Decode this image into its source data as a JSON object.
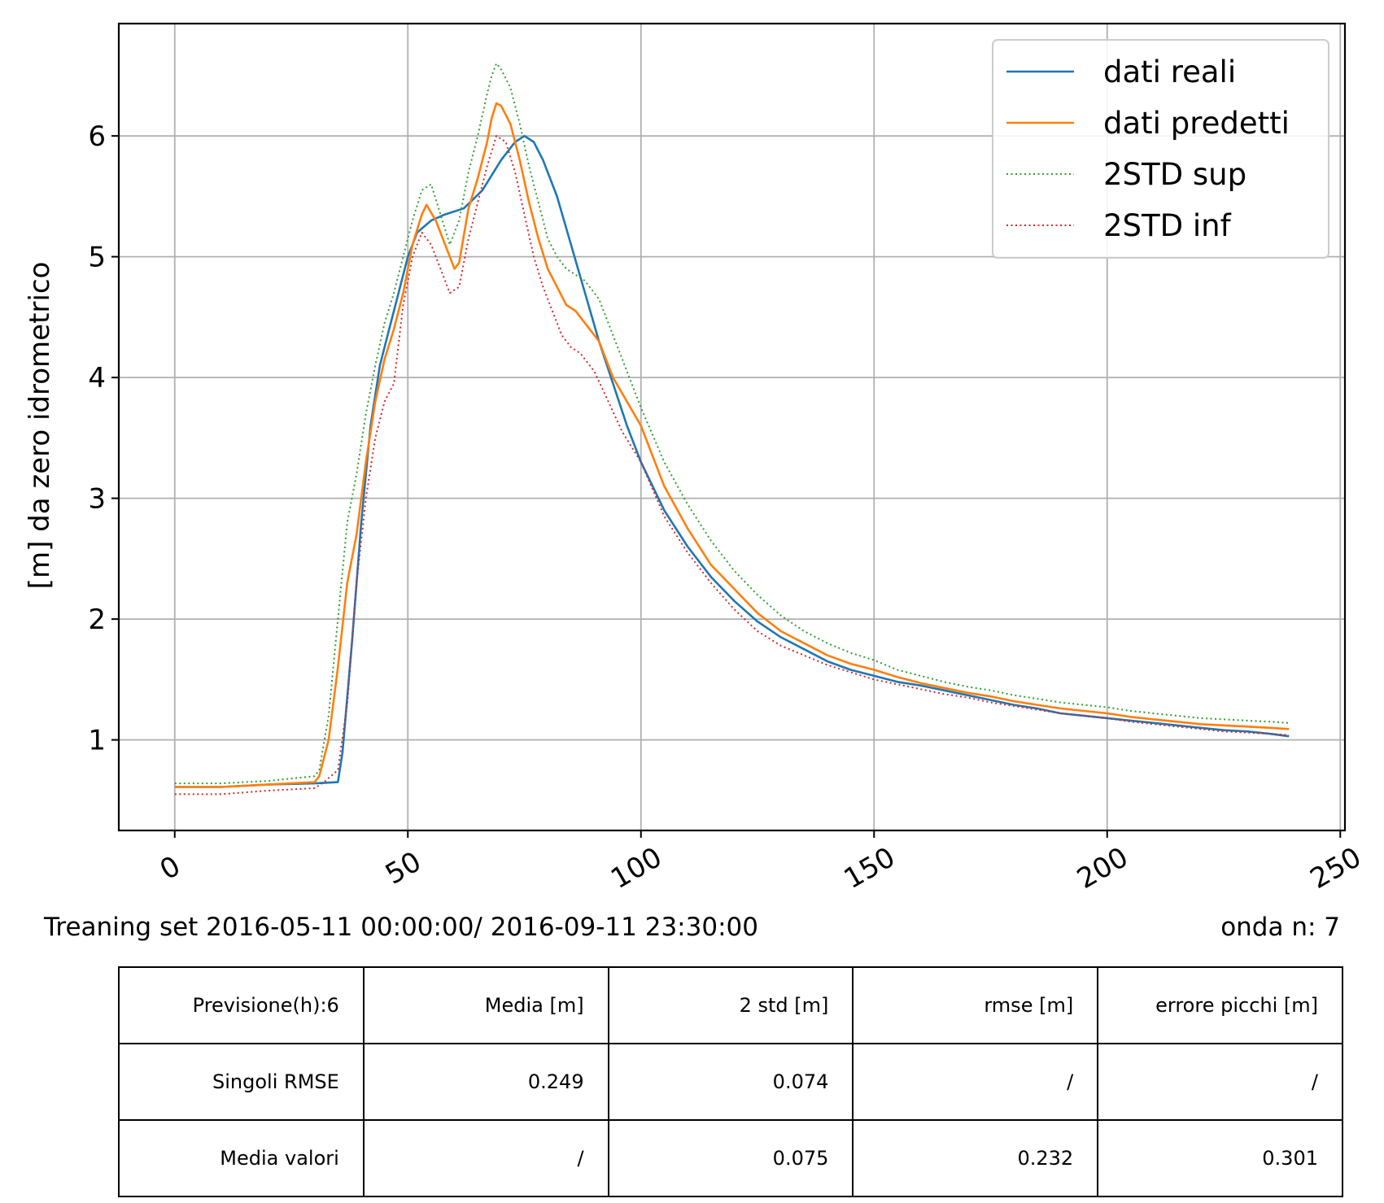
{
  "chart_data": {
    "type": "line",
    "title": "",
    "xlabel": "",
    "ylabel": "[m] da zero idrometrico",
    "xlim": [
      -12,
      251
    ],
    "ylim": [
      0.25,
      6.93
    ],
    "xticks": [
      0,
      50,
      100,
      150,
      200,
      250
    ],
    "yticks": [
      1,
      2,
      3,
      4,
      5,
      6
    ],
    "grid": true,
    "legend_position": "top-right",
    "x_range": [
      0,
      239
    ],
    "series": [
      {
        "name": "dati reali",
        "color": "#1f77b4",
        "style": "solid",
        "points": [
          [
            0,
            0.61
          ],
          [
            10,
            0.61
          ],
          [
            20,
            0.63
          ],
          [
            30,
            0.64
          ],
          [
            35,
            0.65
          ],
          [
            36,
            0.9
          ],
          [
            38,
            1.8
          ],
          [
            40,
            2.8
          ],
          [
            42,
            3.6
          ],
          [
            44,
            4.1
          ],
          [
            46,
            4.4
          ],
          [
            48,
            4.7
          ],
          [
            50,
            5.0
          ],
          [
            52,
            5.2
          ],
          [
            55,
            5.3
          ],
          [
            58,
            5.35
          ],
          [
            62,
            5.4
          ],
          [
            66,
            5.55
          ],
          [
            70,
            5.8
          ],
          [
            73,
            5.95
          ],
          [
            75,
            6.0
          ],
          [
            77,
            5.95
          ],
          [
            79,
            5.8
          ],
          [
            82,
            5.5
          ],
          [
            85,
            5.1
          ],
          [
            88,
            4.7
          ],
          [
            91,
            4.3
          ],
          [
            94,
            3.95
          ],
          [
            97,
            3.6
          ],
          [
            100,
            3.3
          ],
          [
            105,
            2.9
          ],
          [
            110,
            2.6
          ],
          [
            115,
            2.35
          ],
          [
            120,
            2.15
          ],
          [
            125,
            1.98
          ],
          [
            130,
            1.85
          ],
          [
            135,
            1.75
          ],
          [
            140,
            1.65
          ],
          [
            145,
            1.58
          ],
          [
            150,
            1.53
          ],
          [
            155,
            1.48
          ],
          [
            160,
            1.45
          ],
          [
            165,
            1.41
          ],
          [
            170,
            1.37
          ],
          [
            175,
            1.33
          ],
          [
            180,
            1.29
          ],
          [
            185,
            1.26
          ],
          [
            190,
            1.22
          ],
          [
            195,
            1.2
          ],
          [
            200,
            1.18
          ],
          [
            205,
            1.16
          ],
          [
            210,
            1.14
          ],
          [
            215,
            1.12
          ],
          [
            220,
            1.1
          ],
          [
            225,
            1.08
          ],
          [
            230,
            1.07
          ],
          [
            235,
            1.05
          ],
          [
            239,
            1.03
          ]
        ]
      },
      {
        "name": "dati predetti",
        "color": "#ff7f0e",
        "style": "solid",
        "points": [
          [
            0,
            0.61
          ],
          [
            10,
            0.61
          ],
          [
            20,
            0.63
          ],
          [
            30,
            0.65
          ],
          [
            31,
            0.7
          ],
          [
            33,
            1.0
          ],
          [
            35,
            1.6
          ],
          [
            37,
            2.3
          ],
          [
            39,
            2.7
          ],
          [
            41,
            3.3
          ],
          [
            43,
            3.8
          ],
          [
            45,
            4.15
          ],
          [
            47,
            4.4
          ],
          [
            49,
            4.7
          ],
          [
            51,
            5.1
          ],
          [
            53,
            5.35
          ],
          [
            54,
            5.43
          ],
          [
            56,
            5.3
          ],
          [
            58,
            5.1
          ],
          [
            60,
            4.9
          ],
          [
            61,
            4.95
          ],
          [
            63,
            5.4
          ],
          [
            65,
            5.65
          ],
          [
            67,
            5.95
          ],
          [
            68,
            6.15
          ],
          [
            69,
            6.27
          ],
          [
            70,
            6.25
          ],
          [
            72,
            6.1
          ],
          [
            74,
            5.8
          ],
          [
            76,
            5.45
          ],
          [
            78,
            5.15
          ],
          [
            80,
            4.9
          ],
          [
            82,
            4.75
          ],
          [
            84,
            4.6
          ],
          [
            86,
            4.55
          ],
          [
            88,
            4.45
          ],
          [
            91,
            4.3
          ],
          [
            94,
            4.0
          ],
          [
            97,
            3.8
          ],
          [
            100,
            3.6
          ],
          [
            105,
            3.1
          ],
          [
            110,
            2.75
          ],
          [
            115,
            2.45
          ],
          [
            120,
            2.25
          ],
          [
            125,
            2.05
          ],
          [
            130,
            1.9
          ],
          [
            135,
            1.8
          ],
          [
            140,
            1.7
          ],
          [
            145,
            1.63
          ],
          [
            150,
            1.58
          ],
          [
            155,
            1.52
          ],
          [
            160,
            1.47
          ],
          [
            165,
            1.43
          ],
          [
            170,
            1.39
          ],
          [
            175,
            1.36
          ],
          [
            180,
            1.32
          ],
          [
            185,
            1.29
          ],
          [
            190,
            1.26
          ],
          [
            195,
            1.24
          ],
          [
            200,
            1.22
          ],
          [
            205,
            1.19
          ],
          [
            210,
            1.17
          ],
          [
            215,
            1.15
          ],
          [
            220,
            1.13
          ],
          [
            225,
            1.12
          ],
          [
            230,
            1.11
          ],
          [
            235,
            1.1
          ],
          [
            239,
            1.09
          ]
        ]
      },
      {
        "name": "2STD sup",
        "color": "#2ca02c",
        "style": "dotted",
        "points": [
          [
            0,
            0.64
          ],
          [
            10,
            0.64
          ],
          [
            20,
            0.66
          ],
          [
            30,
            0.7
          ],
          [
            31,
            0.75
          ],
          [
            33,
            1.2
          ],
          [
            35,
            2.0
          ],
          [
            37,
            2.8
          ],
          [
            39,
            3.2
          ],
          [
            41,
            3.7
          ],
          [
            43,
            4.1
          ],
          [
            45,
            4.45
          ],
          [
            47,
            4.7
          ],
          [
            49,
            5.0
          ],
          [
            51,
            5.3
          ],
          [
            53,
            5.55
          ],
          [
            55,
            5.6
          ],
          [
            57,
            5.35
          ],
          [
            59,
            5.1
          ],
          [
            61,
            5.3
          ],
          [
            63,
            5.7
          ],
          [
            65,
            6.0
          ],
          [
            67,
            6.35
          ],
          [
            68,
            6.5
          ],
          [
            69,
            6.6
          ],
          [
            70,
            6.55
          ],
          [
            72,
            6.4
          ],
          [
            74,
            6.1
          ],
          [
            76,
            5.75
          ],
          [
            78,
            5.45
          ],
          [
            80,
            5.15
          ],
          [
            82,
            5.0
          ],
          [
            84,
            4.9
          ],
          [
            86,
            4.85
          ],
          [
            88,
            4.8
          ],
          [
            91,
            4.65
          ],
          [
            94,
            4.35
          ],
          [
            97,
            4.05
          ],
          [
            100,
            3.75
          ],
          [
            105,
            3.3
          ],
          [
            110,
            2.95
          ],
          [
            115,
            2.65
          ],
          [
            120,
            2.4
          ],
          [
            125,
            2.2
          ],
          [
            130,
            2.03
          ],
          [
            135,
            1.9
          ],
          [
            140,
            1.8
          ],
          [
            145,
            1.72
          ],
          [
            150,
            1.66
          ],
          [
            155,
            1.58
          ],
          [
            160,
            1.53
          ],
          [
            165,
            1.48
          ],
          [
            170,
            1.44
          ],
          [
            175,
            1.41
          ],
          [
            180,
            1.37
          ],
          [
            185,
            1.34
          ],
          [
            190,
            1.31
          ],
          [
            195,
            1.29
          ],
          [
            200,
            1.27
          ],
          [
            205,
            1.24
          ],
          [
            210,
            1.22
          ],
          [
            215,
            1.2
          ],
          [
            220,
            1.18
          ],
          [
            225,
            1.17
          ],
          [
            230,
            1.16
          ],
          [
            235,
            1.15
          ],
          [
            239,
            1.14
          ]
        ]
      },
      {
        "name": "2STD inf",
        "color": "#d62728",
        "style": "dotted",
        "points": [
          [
            0,
            0.55
          ],
          [
            10,
            0.55
          ],
          [
            20,
            0.58
          ],
          [
            30,
            0.6
          ],
          [
            32,
            0.65
          ],
          [
            35,
            0.75
          ],
          [
            37,
            1.3
          ],
          [
            39,
            2.3
          ],
          [
            41,
            3.0
          ],
          [
            43,
            3.5
          ],
          [
            45,
            3.8
          ],
          [
            47,
            3.95
          ],
          [
            49,
            4.6
          ],
          [
            51,
            5.0
          ],
          [
            53,
            5.2
          ],
          [
            55,
            5.1
          ],
          [
            57,
            4.9
          ],
          [
            59,
            4.7
          ],
          [
            61,
            4.75
          ],
          [
            63,
            5.15
          ],
          [
            65,
            5.45
          ],
          [
            67,
            5.75
          ],
          [
            69,
            6.0
          ],
          [
            71,
            5.95
          ],
          [
            73,
            5.7
          ],
          [
            75,
            5.35
          ],
          [
            77,
            5.0
          ],
          [
            79,
            4.75
          ],
          [
            81,
            4.55
          ],
          [
            83,
            4.35
          ],
          [
            85,
            4.25
          ],
          [
            87,
            4.2
          ],
          [
            90,
            4.05
          ],
          [
            93,
            3.8
          ],
          [
            96,
            3.55
          ],
          [
            100,
            3.3
          ],
          [
            105,
            2.85
          ],
          [
            110,
            2.55
          ],
          [
            115,
            2.3
          ],
          [
            120,
            2.08
          ],
          [
            125,
            1.9
          ],
          [
            130,
            1.78
          ],
          [
            135,
            1.7
          ],
          [
            140,
            1.62
          ],
          [
            145,
            1.56
          ],
          [
            150,
            1.5
          ],
          [
            155,
            1.46
          ],
          [
            160,
            1.42
          ],
          [
            165,
            1.38
          ],
          [
            170,
            1.35
          ],
          [
            175,
            1.31
          ],
          [
            180,
            1.28
          ],
          [
            185,
            1.25
          ],
          [
            190,
            1.22
          ],
          [
            195,
            1.2
          ],
          [
            200,
            1.18
          ],
          [
            205,
            1.15
          ],
          [
            210,
            1.13
          ],
          [
            215,
            1.11
          ],
          [
            220,
            1.09
          ],
          [
            225,
            1.07
          ],
          [
            230,
            1.06
          ],
          [
            235,
            1.05
          ],
          [
            239,
            1.04
          ]
        ]
      }
    ]
  },
  "caption": {
    "left": "Treaning set  2016-05-11 00:00:00/ 2016-09-11 23:30:00",
    "right": "onda n: 7"
  },
  "table": {
    "rows": [
      [
        "Previsione(h):6",
        "Media [m]",
        "2 std [m]",
        "rmse [m]",
        "errore picchi [m]"
      ],
      [
        "Singoli RMSE",
        "0.249",
        "0.074",
        "/",
        "/"
      ],
      [
        "Media valori",
        "/",
        "0.075",
        "0.232",
        "0.301"
      ]
    ]
  }
}
